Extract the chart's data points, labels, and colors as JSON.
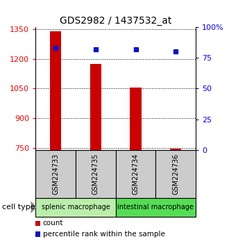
{
  "title": "GDS2982 / 1437532_at",
  "samples": [
    "GSM224733",
    "GSM224735",
    "GSM224734",
    "GSM224736"
  ],
  "counts": [
    1340,
    1175,
    1055,
    748
  ],
  "percentile_ranks": [
    83,
    82,
    82,
    80
  ],
  "ylim_left": [
    740,
    1360
  ],
  "yticks_left": [
    750,
    900,
    1050,
    1200,
    1350
  ],
  "ytick_labels_left": [
    "750",
    "900",
    "1050",
    "1200",
    "1350"
  ],
  "yticks_right": [
    0,
    25,
    50,
    75,
    100
  ],
  "ytick_labels_right": [
    "0",
    "25",
    "50",
    "75",
    "100%"
  ],
  "ylim_right": [
    0,
    100
  ],
  "bar_color": "#cc0000",
  "dot_color": "#1111cc",
  "bar_width": 0.28,
  "groups": [
    {
      "label": "splenic macrophage",
      "samples": [
        0,
        1
      ],
      "color": "#bbeeaa"
    },
    {
      "label": "intestinal macrophage",
      "samples": [
        2,
        3
      ],
      "color": "#55dd55"
    }
  ],
  "sample_box_color": "#cccccc",
  "background_color": "#ffffff",
  "legend_items": [
    {
      "color": "#cc0000",
      "label": "count"
    },
    {
      "color": "#1111cc",
      "label": "percentile rank within the sample"
    }
  ],
  "cell_type_label": "cell type"
}
